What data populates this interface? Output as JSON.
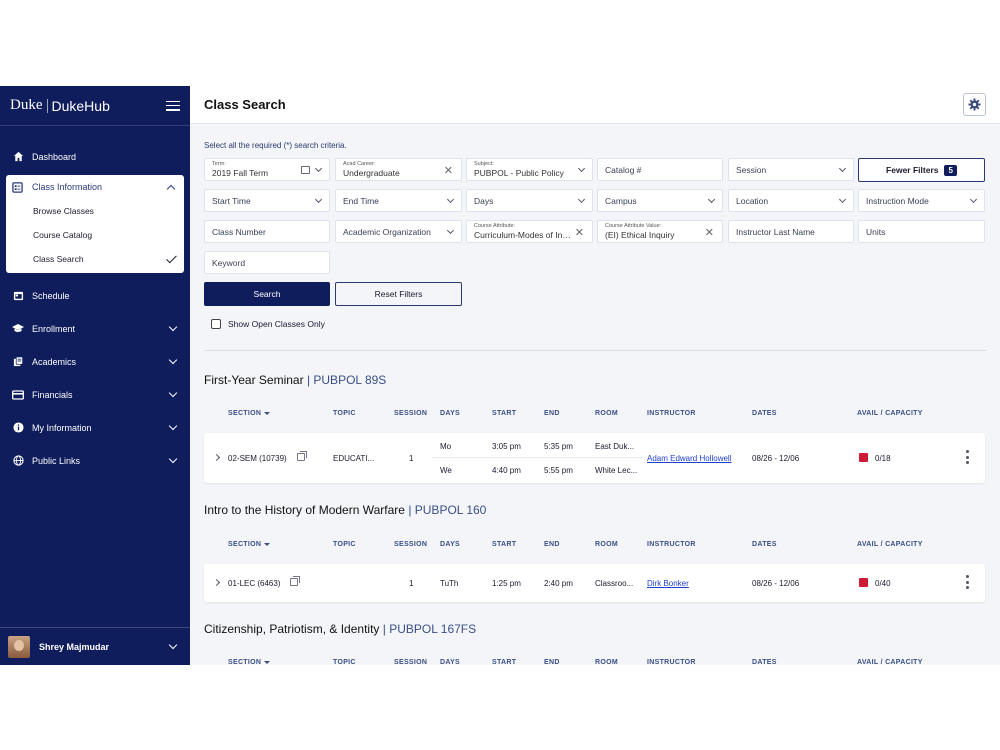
{
  "brand": {
    "duke": "Duke",
    "hub": "DukeHub"
  },
  "nav": {
    "dashboard": "Dashboard",
    "class_information": "Class Information",
    "sub": [
      "Browse Classes",
      "Course Catalog",
      "Class Search"
    ],
    "schedule": "Schedule",
    "enrollment": "Enrollment",
    "academics": "Academics",
    "financials": "Financials",
    "my_information": "My Information",
    "public_links": "Public Links"
  },
  "user": {
    "name": "Shrey Majmudar"
  },
  "header": {
    "title": "Class Search"
  },
  "form": {
    "criteria_note": "Select all the required (*) search criteria.",
    "term_label": "Term:",
    "term_value": "2019 Fall Term",
    "career_label": "Acad Career:",
    "career_value": "Undergraduate",
    "subject_label": "Subject:",
    "subject_value": "PUBPOL - Public Policy",
    "catalog": "Catalog #",
    "session": "Session",
    "fewer_filters": "Fewer Filters",
    "filter_count": "5",
    "start_time": "Start Time",
    "end_time": "End Time",
    "days": "Days",
    "campus": "Campus",
    "location": "Location",
    "instruction_mode": "Instruction Mode",
    "class_number": "Class Number",
    "academic_org": "Academic Organization",
    "course_attr_label": "Course Attribute:",
    "course_attr_value": "Curriculum-Modes of Inquiry",
    "course_attr_value_label": "Course Attribute Value:",
    "course_attr_value_value": "(EI) Ethical Inquiry",
    "instructor_last": "Instructor Last Name",
    "units": "Units",
    "keyword": "Keyword",
    "search": "Search",
    "reset": "Reset Filters",
    "open_only": "Show Open Classes Only"
  },
  "columns": {
    "section": "SECTION",
    "topic": "TOPIC",
    "session": "SESSION",
    "days": "DAYS",
    "start": "START",
    "end": "END",
    "room": "ROOM",
    "instructor": "INSTRUCTOR",
    "dates": "DATES",
    "avail": "AVAIL / CAPACITY"
  },
  "courses": [
    {
      "title": "First-Year Seminar",
      "code": "| PUBPOL 89S",
      "row": {
        "section": "02-SEM (10739)",
        "topic": "EDUCATI...",
        "session": "1",
        "meetings": [
          {
            "days": "Mo",
            "start": "3:05 pm",
            "end": "5:35 pm",
            "room": "East Duk..."
          },
          {
            "days": "We",
            "start": "4:40 pm",
            "end": "5:55 pm",
            "room": "White Lec..."
          }
        ],
        "instructor": "Adam Edward Hollowell",
        "dates": "08/26 - 12/06",
        "avail": "0/18"
      }
    },
    {
      "title": "Intro to the History of Modern Warfare",
      "code": "| PUBPOL 160",
      "row": {
        "section": "01-LEC (6463)",
        "topic": "",
        "session": "1",
        "meetings": [
          {
            "days": "TuTh",
            "start": "1:25 pm",
            "end": "2:40 pm",
            "room": "Classroo..."
          }
        ],
        "instructor": "Dirk Bonker",
        "dates": "08/26 - 12/06",
        "avail": "0/40"
      }
    },
    {
      "title": "Citizenship, Patriotism, & Identity",
      "code": "| PUBPOL 167FS"
    }
  ],
  "colors": {
    "sidebar": "#0f1d5c",
    "status_full": "#d01b34",
    "link": "#1f3fd0"
  }
}
